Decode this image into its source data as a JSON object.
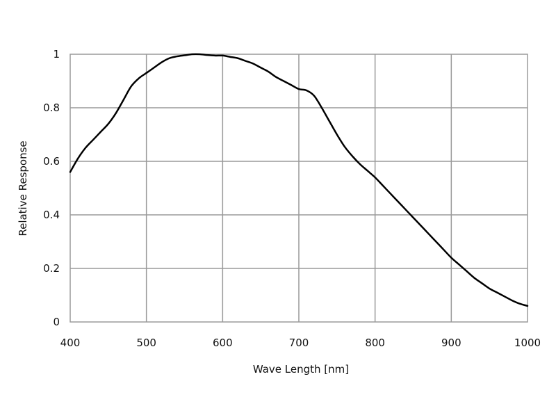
{
  "chart_data": {
    "type": "line",
    "title": "",
    "xlabel": "Wave Length [nm]",
    "ylabel": "Relative Response",
    "xlim": [
      400,
      1000
    ],
    "ylim": [
      0,
      1
    ],
    "x_ticks": [
      400,
      500,
      600,
      700,
      800,
      900,
      1000
    ],
    "x_tick_labels": [
      "400",
      "500",
      "600",
      "700",
      "800",
      "900",
      "1000"
    ],
    "y_ticks": [
      0,
      0.2,
      0.4,
      0.6,
      0.8,
      1
    ],
    "y_tick_labels": [
      "0",
      "0.2",
      "0.4",
      "0.6",
      "0.8",
      "1"
    ],
    "grid": true,
    "legend": "none",
    "series": [
      {
        "color": "#000000",
        "x": [
          400,
          410,
          420,
          430,
          440,
          450,
          460,
          470,
          480,
          490,
          500,
          510,
          520,
          530,
          540,
          550,
          560,
          570,
          580,
          590,
          600,
          610,
          620,
          630,
          640,
          650,
          660,
          670,
          680,
          690,
          700,
          710,
          720,
          730,
          740,
          750,
          760,
          770,
          780,
          790,
          800,
          810,
          820,
          830,
          840,
          850,
          860,
          870,
          880,
          890,
          900,
          910,
          920,
          930,
          940,
          950,
          960,
          970,
          980,
          990,
          1000
        ],
        "y": [
          0.56,
          0.61,
          0.65,
          0.68,
          0.71,
          0.74,
          0.78,
          0.83,
          0.88,
          0.91,
          0.93,
          0.95,
          0.97,
          0.985,
          0.992,
          0.996,
          1.0,
          1.0,
          0.997,
          0.995,
          0.995,
          0.99,
          0.985,
          0.975,
          0.965,
          0.95,
          0.935,
          0.915,
          0.9,
          0.885,
          0.87,
          0.865,
          0.845,
          0.8,
          0.75,
          0.7,
          0.655,
          0.62,
          0.59,
          0.565,
          0.54,
          0.51,
          0.48,
          0.45,
          0.42,
          0.39,
          0.36,
          0.33,
          0.3,
          0.27,
          0.24,
          0.215,
          0.19,
          0.165,
          0.145,
          0.125,
          0.11,
          0.095,
          0.08,
          0.068,
          0.06
        ]
      }
    ]
  }
}
